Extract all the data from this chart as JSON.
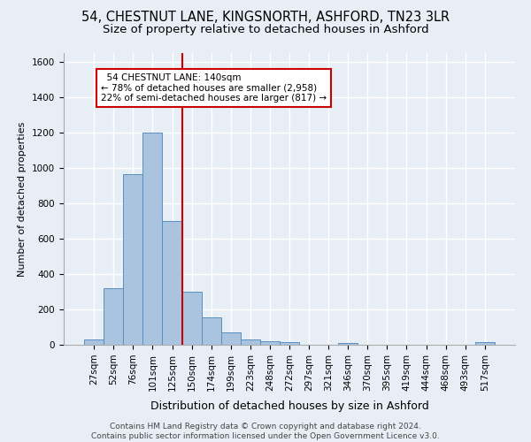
{
  "title_line1": "54, CHESTNUT LANE, KINGSNORTH, ASHFORD, TN23 3LR",
  "title_line2": "Size of property relative to detached houses in Ashford",
  "xlabel": "Distribution of detached houses by size in Ashford",
  "ylabel": "Number of detached properties",
  "footer_line1": "Contains HM Land Registry data © Crown copyright and database right 2024.",
  "footer_line2": "Contains public sector information licensed under the Open Government Licence v3.0.",
  "bar_labels": [
    "27sqm",
    "52sqm",
    "76sqm",
    "101sqm",
    "125sqm",
    "150sqm",
    "174sqm",
    "199sqm",
    "223sqm",
    "248sqm",
    "272sqm",
    "297sqm",
    "321sqm",
    "346sqm",
    "370sqm",
    "395sqm",
    "419sqm",
    "444sqm",
    "468sqm",
    "493sqm",
    "517sqm"
  ],
  "bar_values": [
    30,
    320,
    965,
    1200,
    700,
    300,
    155,
    70,
    30,
    18,
    15,
    0,
    0,
    10,
    0,
    0,
    0,
    0,
    0,
    0,
    13
  ],
  "bar_color": "#aac4e0",
  "bar_edge_color": "#5a8fc0",
  "vline_x_index": 4.5,
  "annotation_text_line1": "54 CHESTNUT LANE: 140sqm",
  "annotation_text_line2": "← 78% of detached houses are smaller (2,958)",
  "annotation_text_line3": "22% of semi-detached houses are larger (817) →",
  "annotation_box_color": "#ffffff",
  "annotation_edge_color": "#cc0000",
  "vline_color": "#cc0000",
  "background_color": "#e8eef6",
  "ylim": [
    0,
    1650
  ],
  "yticks": [
    0,
    200,
    400,
    600,
    800,
    1000,
    1200,
    1400,
    1600
  ],
  "grid_color": "#ffffff",
  "title_fontsize": 10.5,
  "subtitle_fontsize": 9.5,
  "ylabel_fontsize": 8,
  "xlabel_fontsize": 9,
  "tick_fontsize": 7.5,
  "footer_fontsize": 6.5,
  "ann_fontsize": 7.5
}
